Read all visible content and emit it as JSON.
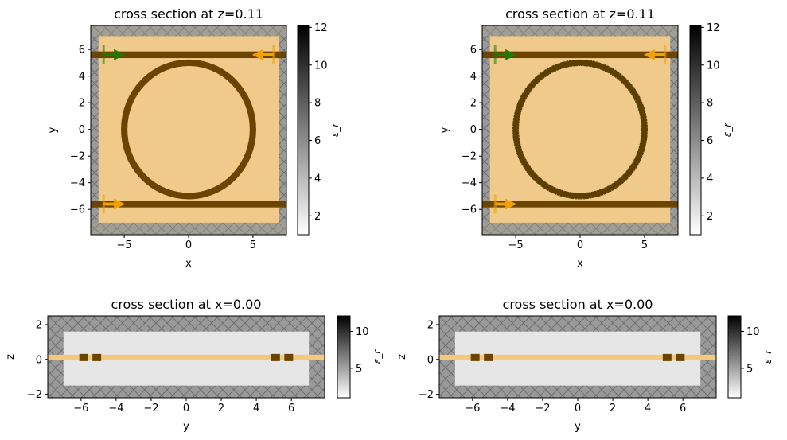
{
  "figure": {
    "background": "#ffffff"
  },
  "colors": {
    "substrate": "#efca8a",
    "waveguide": "#6b4500",
    "waveguide_pixel": "#5c3e00",
    "pml": "#9a9a9a",
    "pml_hatch": "#6f6f6f",
    "pml_top_tint": "#b0a58c",
    "source_arrow": "#1f7a00",
    "monitor_arrow": "#f3a000",
    "line_highlight": "#f5c97a",
    "xsec_bg": "#e6e6e6",
    "cbar_top": "#000000",
    "cbar_bottom": "#ffffff"
  },
  "chart_data": [
    {
      "type": "heatmap",
      "title": "cross section at z=0.11",
      "xlabel": "x",
      "ylabel": "y",
      "xlim": [
        -7.6,
        7.6
      ],
      "ylim": [
        -7.9,
        7.8
      ],
      "xticks": [
        -5,
        0,
        5
      ],
      "xtick_labels": [
        "−5",
        "0",
        "5"
      ],
      "yticks": [
        -6,
        -4,
        -2,
        0,
        2,
        4,
        6
      ],
      "ytick_labels": [
        "−6",
        "−4",
        "−2",
        "0",
        "2",
        "4",
        "6"
      ],
      "domain": [
        -7,
        7,
        -7,
        7
      ],
      "ring": {
        "center": [
          0,
          0
        ],
        "radius": 5.0,
        "width": 0.5
      },
      "waveguides": [
        {
          "y": 5.6,
          "width": 0.5
        },
        {
          "y": -5.6,
          "width": 0.5
        }
      ],
      "sources": [
        {
          "x": -6.6,
          "y": 5.6,
          "dir": "+x"
        }
      ],
      "monitors": [
        {
          "x": 6.6,
          "y": 5.6,
          "dir": "-x"
        },
        {
          "x": -6.6,
          "y": -5.6,
          "dir": "+x"
        }
      ],
      "pixelated": false,
      "colorbar": {
        "label": "ε_r",
        "min": 1,
        "max": 12.1,
        "ticks": [
          2,
          4,
          6,
          8,
          10,
          12
        ],
        "tick_labels": [
          "2",
          "4",
          "6",
          "8",
          "10",
          "12"
        ]
      }
    },
    {
      "type": "heatmap",
      "title": "cross section at z=0.11",
      "xlabel": "x",
      "ylabel": "y",
      "xlim": [
        -7.6,
        7.6
      ],
      "ylim": [
        -7.9,
        7.8
      ],
      "xticks": [
        -5,
        0,
        5
      ],
      "xtick_labels": [
        "−5",
        "0",
        "5"
      ],
      "yticks": [
        -6,
        -4,
        -2,
        0,
        2,
        4,
        6
      ],
      "ytick_labels": [
        "−6",
        "−4",
        "−2",
        "0",
        "2",
        "4",
        "6"
      ],
      "domain": [
        -7,
        7,
        -7,
        7
      ],
      "ring": {
        "center": [
          0,
          0
        ],
        "radius": 5.0,
        "width": 0.5
      },
      "waveguides": [
        {
          "y": 5.6,
          "width": 0.5
        },
        {
          "y": -5.6,
          "width": 0.5
        }
      ],
      "sources": [
        {
          "x": -6.6,
          "y": 5.6,
          "dir": "+x"
        }
      ],
      "monitors": [
        {
          "x": 6.6,
          "y": 5.6,
          "dir": "-x"
        },
        {
          "x": -6.6,
          "y": -5.6,
          "dir": "+x"
        }
      ],
      "pixelated": true,
      "colorbar": {
        "label": "ε_r",
        "min": 1,
        "max": 12.1,
        "ticks": [
          2,
          4,
          6,
          8,
          10,
          12
        ],
        "tick_labels": [
          "2",
          "4",
          "6",
          "8",
          "10",
          "12"
        ]
      }
    },
    {
      "type": "heatmap",
      "title": "cross section at x=0.00",
      "xlabel": "y",
      "ylabel": "z",
      "xlim": [
        -7.9,
        7.9
      ],
      "ylim": [
        -2.2,
        2.5
      ],
      "xticks": [
        -6,
        -4,
        -2,
        0,
        2,
        4,
        6
      ],
      "xtick_labels": [
        "−6",
        "−4",
        "−2",
        "0",
        "2",
        "4",
        "6"
      ],
      "yticks": [
        -2,
        0,
        2
      ],
      "ytick_labels": [
        "−2",
        "0",
        "2"
      ],
      "domain": [
        -7,
        7,
        -1.5,
        1.6
      ],
      "slab": {
        "z": 0.11,
        "thickness": 0.22
      },
      "blocks": [
        {
          "y": -5.85,
          "w": 0.5
        },
        {
          "y": -5.1,
          "w": 0.5
        },
        {
          "y": 5.1,
          "w": 0.5
        },
        {
          "y": 5.85,
          "w": 0.5
        }
      ],
      "colorbar": {
        "label": "ε_r",
        "min": 1,
        "max": 12.1,
        "ticks": [
          5,
          10
        ],
        "tick_labels": [
          "5",
          "10"
        ]
      }
    },
    {
      "type": "heatmap",
      "title": "cross section at x=0.00",
      "xlabel": "y",
      "ylabel": "z",
      "xlim": [
        -7.9,
        7.9
      ],
      "ylim": [
        -2.2,
        2.5
      ],
      "xticks": [
        -6,
        -4,
        -2,
        0,
        2,
        4,
        6
      ],
      "xtick_labels": [
        "−6",
        "−4",
        "−2",
        "0",
        "2",
        "4",
        "6"
      ],
      "yticks": [
        -2,
        0,
        2
      ],
      "ytick_labels": [
        "−2",
        "0",
        "2"
      ],
      "domain": [
        -7,
        7,
        -1.5,
        1.6
      ],
      "slab": {
        "z": 0.11,
        "thickness": 0.22
      },
      "blocks": [
        {
          "y": -5.85,
          "w": 0.5
        },
        {
          "y": -5.1,
          "w": 0.5
        },
        {
          "y": 5.1,
          "w": 0.5
        },
        {
          "y": 5.85,
          "w": 0.5
        }
      ],
      "colorbar": {
        "label": "ε_r",
        "min": 1,
        "max": 12.1,
        "ticks": [
          5,
          10
        ],
        "tick_labels": [
          "5",
          "10"
        ]
      }
    }
  ]
}
